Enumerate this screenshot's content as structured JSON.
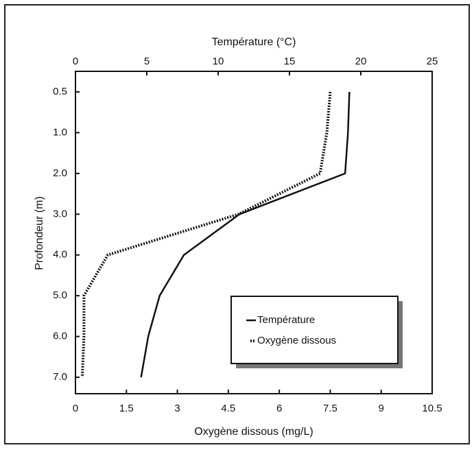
{
  "chart_data": {
    "type": "line",
    "x2label": "Température (°C)",
    "xlabel": "Oxygène dissous (mg/L)",
    "ylabel": "Profondeur (m)",
    "categories": [
      "0.5",
      "1.0",
      "2.0",
      "3.0",
      "4.0",
      "5.0",
      "6.0",
      "7.0"
    ],
    "xlim": [
      0,
      10.5
    ],
    "xticks": [
      0,
      1.5,
      3,
      4.5,
      6,
      7.5,
      9,
      10.5
    ],
    "x2lim": [
      0,
      25
    ],
    "x2ticks": [
      0,
      5,
      10,
      15,
      20,
      25
    ],
    "series": [
      {
        "name": "Température",
        "color": "#111111",
        "style": "solid",
        "axis": "x2",
        "values": [
          19.2,
          19.1,
          18.9,
          11.5,
          7.6,
          5.9,
          5.1,
          4.6
        ]
      },
      {
        "name": "Oxygène dissous",
        "color": "#111111",
        "style": "dotted",
        "axis": "x",
        "values": [
          7.5,
          7.4,
          7.2,
          4.8,
          0.95,
          0.25,
          0.25,
          0.2
        ]
      }
    ],
    "legend": "lower-right"
  }
}
